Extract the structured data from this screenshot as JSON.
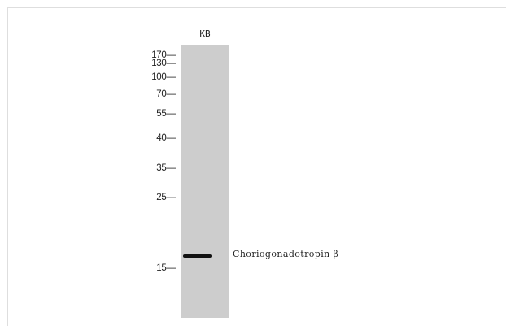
{
  "blot": {
    "lane_label": "KB",
    "markers": [
      {
        "label": "170",
        "dash": "—"
      },
      {
        "label": "130",
        "dash": "—"
      },
      {
        "label": "100",
        "dash": "—"
      },
      {
        "label": "70",
        "dash": "—"
      },
      {
        "label": "55",
        "dash": "—"
      },
      {
        "label": "40",
        "dash": "—"
      },
      {
        "label": "35",
        "dash": "—"
      },
      {
        "label": "25",
        "dash": "—"
      },
      {
        "label": "15",
        "dash": "—"
      }
    ],
    "target_label": "Choriogonadotropin β"
  }
}
